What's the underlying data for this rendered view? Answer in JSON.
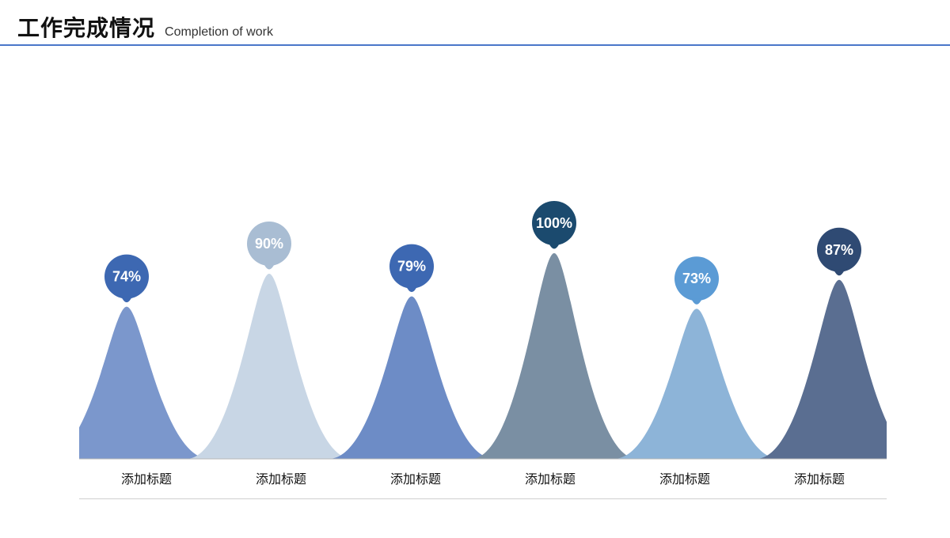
{
  "header": {
    "title_cn": "工作完成情况",
    "title_en": "Completion of work",
    "title_cn_fontsize": 28,
    "title_en_fontsize": 16,
    "rule_color": "#4a77c9"
  },
  "chart": {
    "type": "infographic",
    "background_color": "#ffffff",
    "baseline_color": "#b8b8b8",
    "label_rule_color": "#cfcfcf",
    "peak_max_height": 260,
    "peak_spread": 210,
    "peak_overlap": 0.28,
    "badge_radius": 28,
    "badge_text_color": "#ffffff",
    "badge_fontsize": 18,
    "label_fontsize": 16,
    "label_color": "#111111",
    "items": [
      {
        "value": 74,
        "value_label": "74%",
        "x_label": "添加标题",
        "peak_color": "#7b97cc",
        "badge_color": "#3d68b2"
      },
      {
        "value": 90,
        "value_label": "90%",
        "x_label": "添加标题",
        "peak_color": "#c8d6e5",
        "badge_color": "#a9bdd3"
      },
      {
        "value": 79,
        "value_label": "79%",
        "x_label": "添加标题",
        "peak_color": "#6d8cc6",
        "badge_color": "#3d68b2"
      },
      {
        "value": 100,
        "value_label": "100%",
        "x_label": "添加标题",
        "peak_color": "#7a8fa3",
        "badge_color": "#1b4a6e"
      },
      {
        "value": 73,
        "value_label": "73%",
        "x_label": "添加标题",
        "peak_color": "#8db4d8",
        "badge_color": "#5b9bd5"
      },
      {
        "value": 87,
        "value_label": "87%",
        "x_label": "添加标题",
        "peak_color": "#5a6e91",
        "badge_color": "#2f4a73"
      }
    ]
  }
}
